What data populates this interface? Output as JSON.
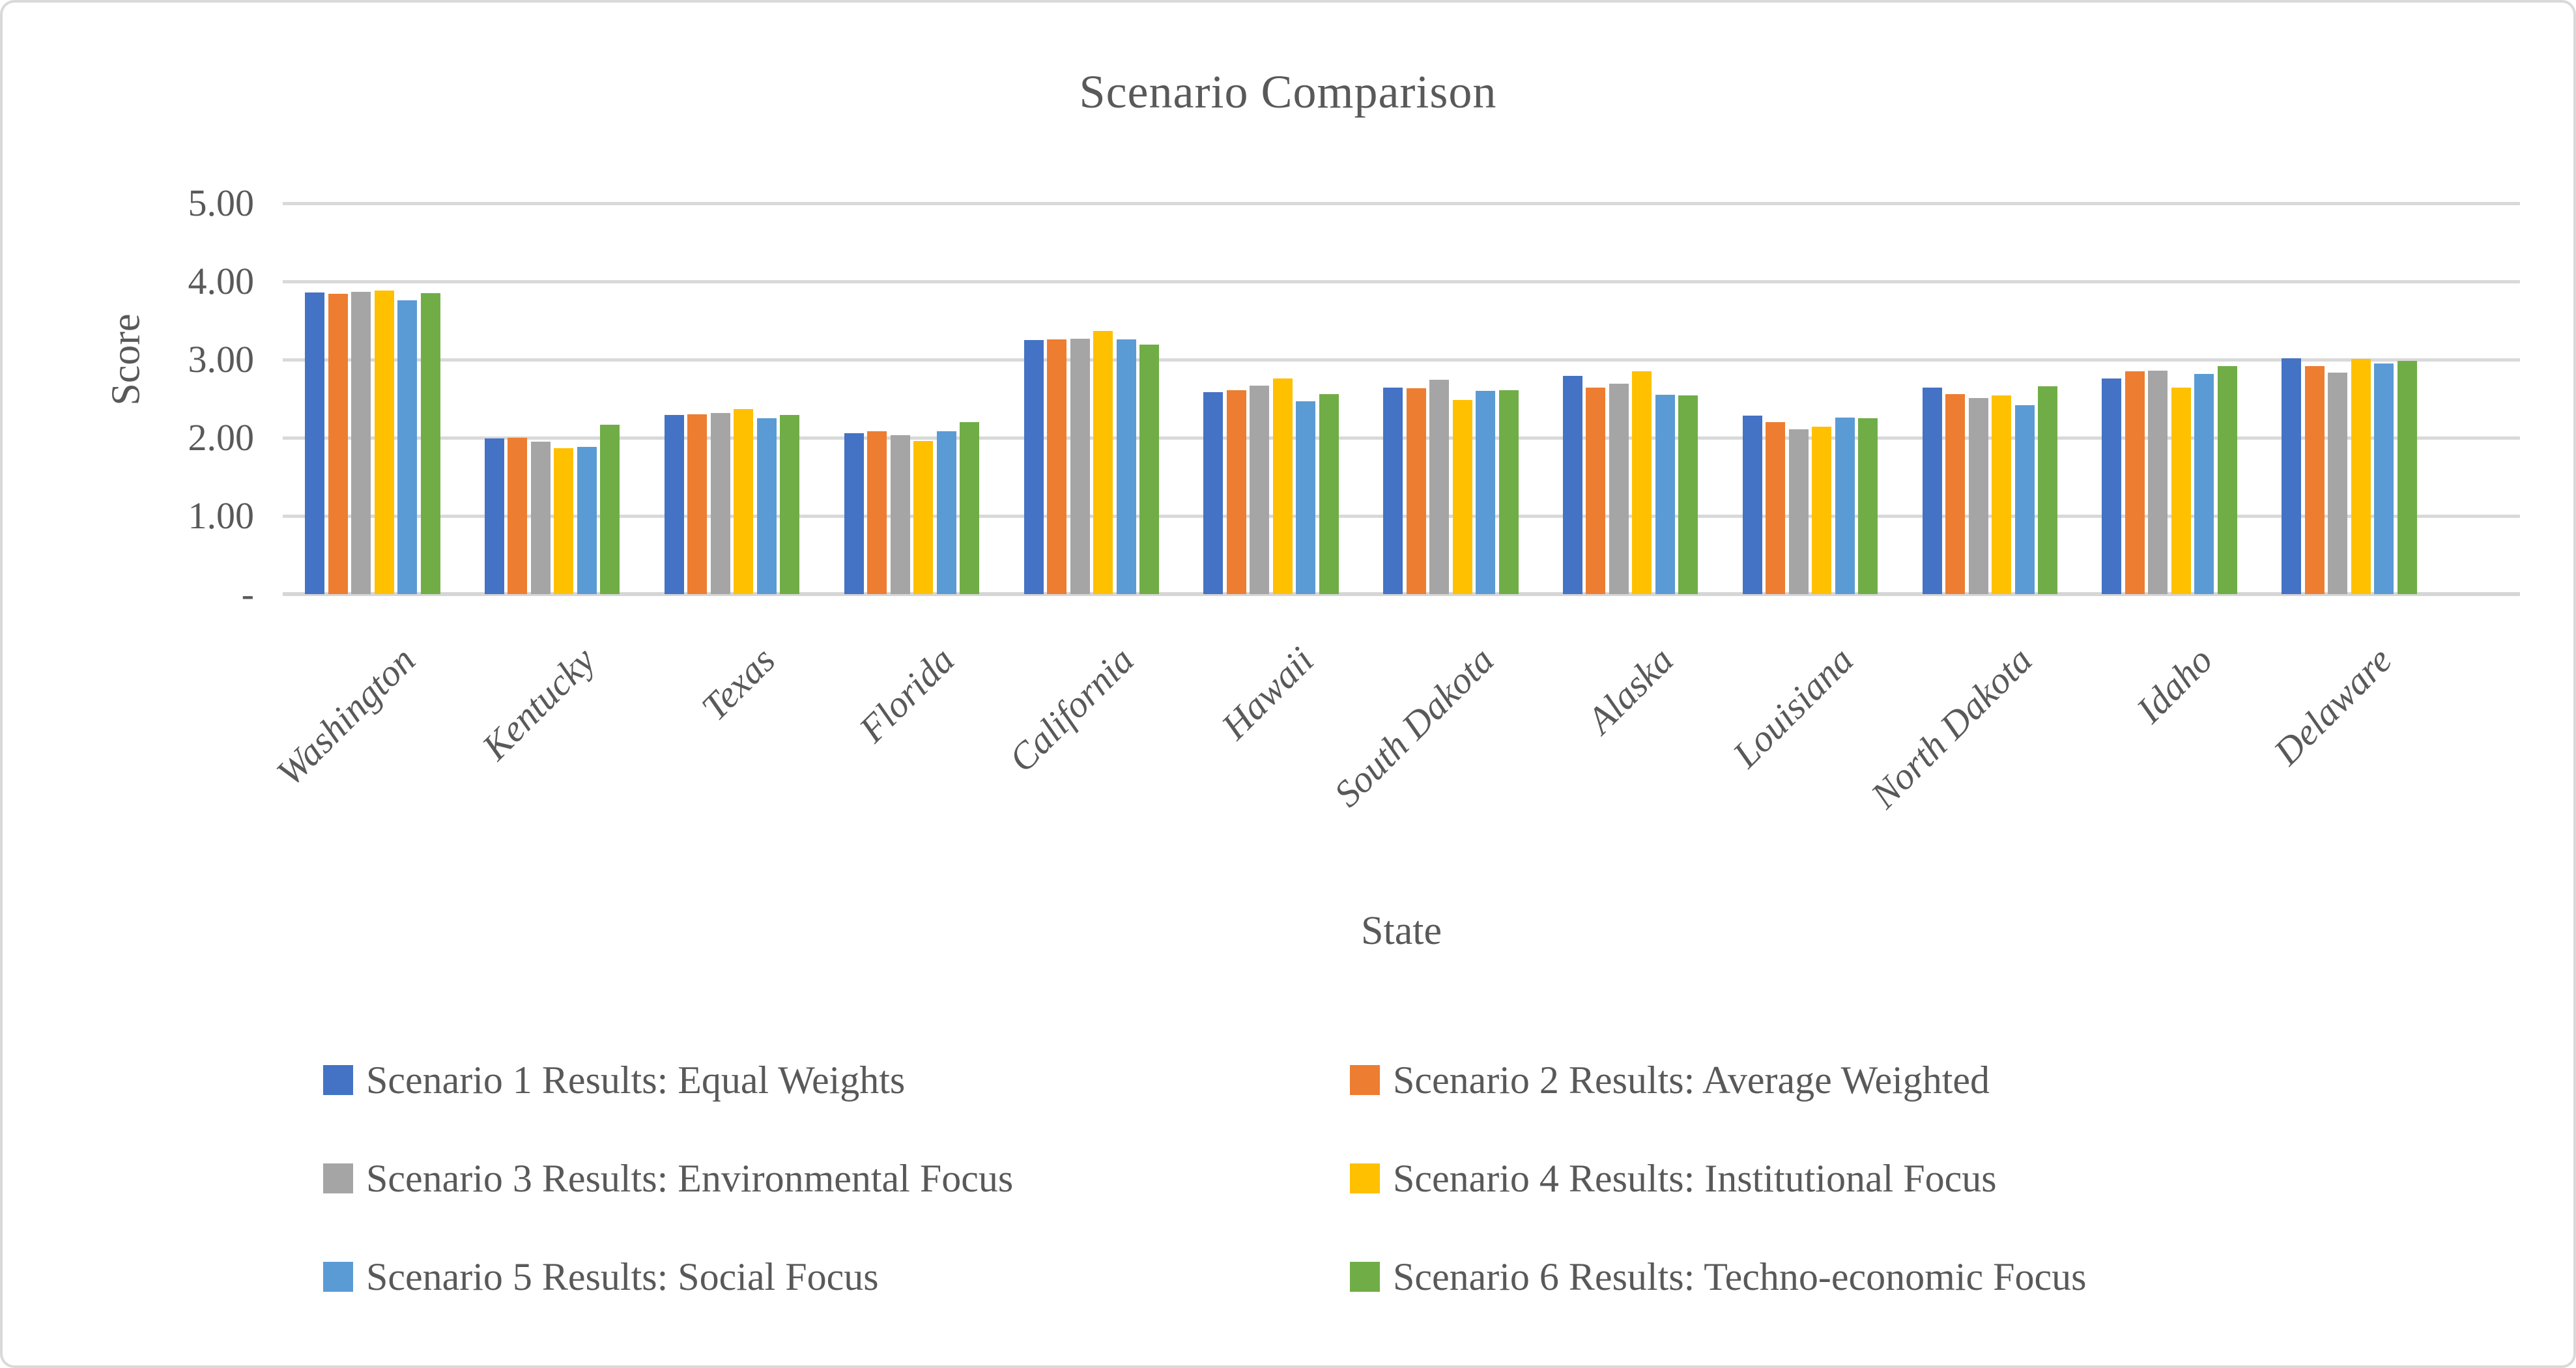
{
  "chart_data": {
    "type": "bar",
    "title": "Scenario Comparison",
    "xlabel": "State",
    "ylabel": "Score",
    "ylim": [
      0,
      5
    ],
    "grid": true,
    "legend_position": "bottom",
    "colors": {
      "text": "#595959",
      "gridline": "#D9D9D9",
      "border": "#D9D9D9"
    },
    "yticks": [
      {
        "label": "5.00",
        "value": 5
      },
      {
        "label": "4.00",
        "value": 4
      },
      {
        "label": "3.00",
        "value": 3
      },
      {
        "label": "2.00",
        "value": 2
      },
      {
        "label": "1.00",
        "value": 1
      },
      {
        "label": "-",
        "value": 0
      }
    ],
    "categories": [
      "Washington",
      "Kentucky",
      "Texas",
      "Florida",
      "California",
      "Hawaii",
      "South Dakota",
      "Alaska",
      "Louisiana",
      "North Dakota",
      "Idaho",
      "Delaware"
    ],
    "series": [
      {
        "name": "Scenario 1 Results: Equal Weights",
        "color": "#4472C4",
        "values": [
          3.86,
          1.99,
          2.29,
          2.06,
          3.25,
          2.58,
          2.64,
          2.79,
          2.28,
          2.64,
          2.76,
          3.02
        ]
      },
      {
        "name": "Scenario 2 Results: Average Weighted",
        "color": "#ED7D31",
        "values": [
          3.84,
          2.0,
          2.3,
          2.08,
          3.26,
          2.61,
          2.63,
          2.64,
          2.2,
          2.56,
          2.85,
          2.92
        ]
      },
      {
        "name": "Scenario 3 Results: Environmental Focus",
        "color": "#A5A5A5",
        "values": [
          3.87,
          1.95,
          2.32,
          2.03,
          3.27,
          2.67,
          2.74,
          2.69,
          2.11,
          2.51,
          2.86,
          2.83
        ]
      },
      {
        "name": "Scenario 4 Results: Institutional Focus",
        "color": "#FFC000",
        "values": [
          3.88,
          1.87,
          2.37,
          1.96,
          3.37,
          2.76,
          2.48,
          2.85,
          2.14,
          2.54,
          2.64,
          3.01
        ]
      },
      {
        "name": "Scenario 5 Results: Social Focus",
        "color": "#5B9BD5",
        "values": [
          3.76,
          1.88,
          2.25,
          2.08,
          3.26,
          2.47,
          2.6,
          2.55,
          2.26,
          2.42,
          2.82,
          2.95
        ]
      },
      {
        "name": "Scenario 6 Results: Techno-economic Focus",
        "color": "#70AD47",
        "values": [
          3.85,
          2.17,
          2.29,
          2.2,
          3.19,
          2.56,
          2.61,
          2.54,
          2.25,
          2.66,
          2.92,
          2.98
        ]
      }
    ]
  }
}
